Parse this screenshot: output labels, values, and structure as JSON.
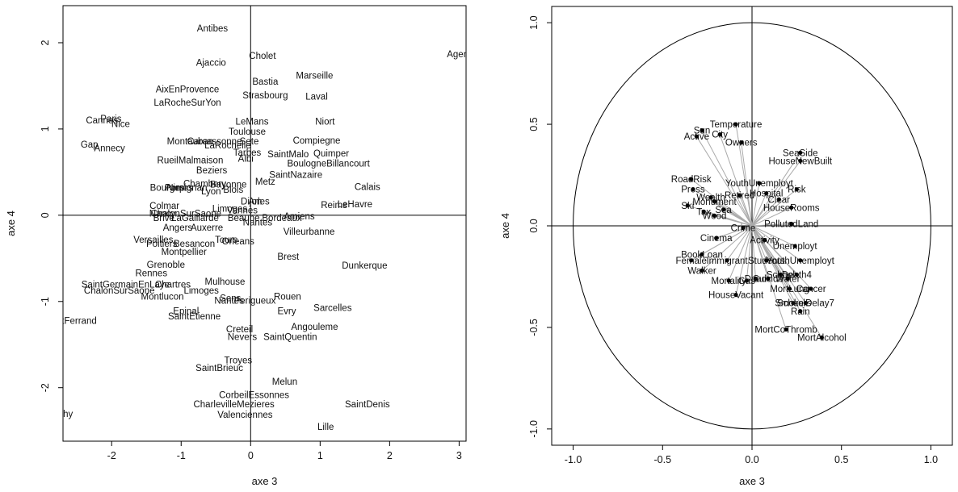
{
  "chart_data": [
    {
      "type": "scatter",
      "xlabel": "axe 3",
      "ylabel": "axe 4",
      "xlim": [
        -2.7,
        3.1
      ],
      "ylim": [
        -2.62,
        2.43
      ],
      "xticks": [
        -2,
        -1,
        0,
        1,
        2,
        3
      ],
      "yticks": [
        -2,
        -1,
        0,
        1,
        2
      ],
      "zero_lines": true,
      "points": [
        {
          "label": "Antibes",
          "x": -0.55,
          "y": 2.17
        },
        {
          "label": "Agen",
          "x": 2.98,
          "y": 1.87
        },
        {
          "label": "Ajaccio",
          "x": -0.57,
          "y": 1.77
        },
        {
          "label": "Cholet",
          "x": 0.17,
          "y": 1.85
        },
        {
          "label": "Marseille",
          "x": 0.92,
          "y": 1.62
        },
        {
          "label": "Bastia",
          "x": 0.21,
          "y": 1.55
        },
        {
          "label": "AixEnProvence",
          "x": -0.91,
          "y": 1.46
        },
        {
          "label": "Strasbourg",
          "x": 0.21,
          "y": 1.39
        },
        {
          "label": "Laval",
          "x": 0.95,
          "y": 1.38
        },
        {
          "label": "LaRocheSurYon",
          "x": -0.91,
          "y": 1.31
        },
        {
          "label": "Paris",
          "x": -2.01,
          "y": 1.12
        },
        {
          "label": "Cannes",
          "x": -2.14,
          "y": 1.1
        },
        {
          "label": "Nice",
          "x": -1.87,
          "y": 1.06
        },
        {
          "label": "LeMans",
          "x": 0.02,
          "y": 1.09
        },
        {
          "label": "Niort",
          "x": 1.07,
          "y": 1.09
        },
        {
          "label": "Toulouse",
          "x": -0.05,
          "y": 0.97
        },
        {
          "label": "Gap",
          "x": -2.32,
          "y": 0.82
        },
        {
          "label": "Annecy",
          "x": -2.03,
          "y": 0.78
        },
        {
          "label": "Montauban",
          "x": -0.87,
          "y": 0.86
        },
        {
          "label": "Carcassonne",
          "x": -0.52,
          "y": 0.86
        },
        {
          "label": "Sete",
          "x": -0.02,
          "y": 0.86
        },
        {
          "label": "LaRochelle",
          "x": -0.33,
          "y": 0.81
        },
        {
          "label": "Compiegne",
          "x": 0.95,
          "y": 0.87
        },
        {
          "label": "Quimper",
          "x": 1.16,
          "y": 0.72
        },
        {
          "label": "Tarbes",
          "x": -0.05,
          "y": 0.73
        },
        {
          "label": "SaintMalo",
          "x": 0.54,
          "y": 0.71
        },
        {
          "label": "RueilMalmaison",
          "x": -0.87,
          "y": 0.64
        },
        {
          "label": "Albi",
          "x": -0.07,
          "y": 0.66
        },
        {
          "label": "BoulogneBillancourt",
          "x": 1.12,
          "y": 0.6
        },
        {
          "label": "Beziers",
          "x": -0.56,
          "y": 0.52
        },
        {
          "label": "SaintNazaire",
          "x": 0.65,
          "y": 0.47
        },
        {
          "label": "Metz",
          "x": 0.21,
          "y": 0.39
        },
        {
          "label": "Calais",
          "x": 1.68,
          "y": 0.33
        },
        {
          "label": "Chambery",
          "x": -0.66,
          "y": 0.37
        },
        {
          "label": "Bayonne",
          "x": -0.32,
          "y": 0.36
        },
        {
          "label": "Perpignan",
          "x": -0.93,
          "y": 0.32
        },
        {
          "label": "Bourges",
          "x": -1.2,
          "y": 0.32
        },
        {
          "label": "Nimes",
          "x": -1.02,
          "y": 0.32
        },
        {
          "label": "Lyon",
          "x": -0.57,
          "y": 0.28
        },
        {
          "label": "Blois",
          "x": -0.25,
          "y": 0.3
        },
        {
          "label": "Dijon",
          "x": 0.01,
          "y": 0.16
        },
        {
          "label": "Arles",
          "x": 0.12,
          "y": 0.16
        },
        {
          "label": "Reims",
          "x": 1.2,
          "y": 0.12
        },
        {
          "label": "LeHavre",
          "x": 1.5,
          "y": 0.13
        },
        {
          "label": "Colmar",
          "x": -1.24,
          "y": 0.11
        },
        {
          "label": "Limoges",
          "x": -0.3,
          "y": 0.08
        },
        {
          "label": "Nancy",
          "x": -1.27,
          "y": 0.02
        },
        {
          "label": "ChalonSurSaone",
          "x": -0.93,
          "y": 0.02
        },
        {
          "label": "Vannes",
          "x": -0.12,
          "y": 0.06
        },
        {
          "label": "Amiens",
          "x": 0.7,
          "y": -0.01
        },
        {
          "label": "Brive",
          "x": -1.25,
          "y": -0.03
        },
        {
          "label": "LaGaillarde",
          "x": -0.8,
          "y": -0.03
        },
        {
          "label": "Beaune",
          "x": -0.1,
          "y": -0.03
        },
        {
          "label": "Bordeaux",
          "x": 0.45,
          "y": -0.03
        },
        {
          "label": "Nantes",
          "x": 0.1,
          "y": -0.08
        },
        {
          "label": "Angers",
          "x": -1.05,
          "y": -0.14
        },
        {
          "label": "Auxerre",
          "x": -0.63,
          "y": -0.14
        },
        {
          "label": "Villeurbanne",
          "x": 0.84,
          "y": -0.19
        },
        {
          "label": "Versailles",
          "x": -1.4,
          "y": -0.28
        },
        {
          "label": "Tours",
          "x": -0.35,
          "y": -0.28
        },
        {
          "label": "Orleans",
          "x": -0.18,
          "y": -0.3
        },
        {
          "label": "Poitiers",
          "x": -1.28,
          "y": -0.33
        },
        {
          "label": "Besancon",
          "x": -0.81,
          "y": -0.33
        },
        {
          "label": "Montpellier",
          "x": -0.96,
          "y": -0.42
        },
        {
          "label": "Brest",
          "x": 0.54,
          "y": -0.48
        },
        {
          "label": "Dunkerque",
          "x": 1.64,
          "y": -0.58
        },
        {
          "label": "Grenoble",
          "x": -1.22,
          "y": -0.57
        },
        {
          "label": "Rennes",
          "x": -1.43,
          "y": -0.67
        },
        {
          "label": "Mulhouse",
          "x": -0.37,
          "y": -0.77
        },
        {
          "label": "SaintGermainEnLaye",
          "x": -1.8,
          "y": -0.8
        },
        {
          "label": "Chartres",
          "x": -1.12,
          "y": -0.8
        },
        {
          "label": "ChalonSurSaone",
          "x": -1.89,
          "y": -0.87
        },
        {
          "label": "Limoges",
          "x": -0.71,
          "y": -0.87
        },
        {
          "label": "Rouen",
          "x": 0.53,
          "y": -0.94
        },
        {
          "label": "Montlucon",
          "x": -1.27,
          "y": -0.94
        },
        {
          "label": "Sens",
          "x": -0.29,
          "y": -0.96
        },
        {
          "label": "Nantes",
          "x": -0.31,
          "y": -0.99
        },
        {
          "label": "Perigueux",
          "x": 0.06,
          "y": -0.99
        },
        {
          "label": "Sarcelles",
          "x": 1.18,
          "y": -1.07
        },
        {
          "label": "Evry",
          "x": 0.52,
          "y": -1.11
        },
        {
          "label": "Epinal",
          "x": -0.93,
          "y": -1.11
        },
        {
          "label": "SaintEtienne",
          "x": -0.81,
          "y": -1.17
        },
        {
          "label": "ClermontFerrand",
          "x": -2.72,
          "y": -1.22
        },
        {
          "label": "Angouleme",
          "x": 0.92,
          "y": -1.29
        },
        {
          "label": "Creteil",
          "x": -0.16,
          "y": -1.32
        },
        {
          "label": "Nevers",
          "x": -0.12,
          "y": -1.41
        },
        {
          "label": "SaintQuentin",
          "x": 0.57,
          "y": -1.41
        },
        {
          "label": "Troyes",
          "x": -0.18,
          "y": -1.68
        },
        {
          "label": "SaintBrieuc",
          "x": -0.45,
          "y": -1.77
        },
        {
          "label": "Melun",
          "x": 0.49,
          "y": -1.93
        },
        {
          "label": "CorbeilEssonnes",
          "x": 0.05,
          "y": -2.08
        },
        {
          "label": "CharlevilleMezieres",
          "x": -0.24,
          "y": -2.19
        },
        {
          "label": "SaintDenis",
          "x": 1.68,
          "y": -2.19
        },
        {
          "label": "Vichy",
          "x": -2.72,
          "y": -2.3
        },
        {
          "label": "Valenciennes",
          "x": -0.08,
          "y": -2.31
        },
        {
          "label": "Lille",
          "x": 1.08,
          "y": -2.45
        }
      ]
    },
    {
      "type": "scatter",
      "xlabel": "axe 3",
      "ylabel": "axe 4",
      "xlim": [
        -1.12,
        1.12
      ],
      "ylim": [
        -1.08,
        1.08
      ],
      "xticks": [
        -1.0,
        -0.5,
        0.0,
        0.5,
        1.0
      ],
      "yticks": [
        -1.0,
        -0.5,
        0.0,
        0.5,
        1.0
      ],
      "tick_labels": [
        "-1.0",
        "-0.5",
        "0.0",
        "0.5",
        "1.0"
      ],
      "zero_lines": true,
      "unit_circle": true,
      "arrows_from_origin": true,
      "points": [
        {
          "label": "Temperature",
          "x": -0.09,
          "y": 0.5
        },
        {
          "label": "Sun",
          "x": -0.28,
          "y": 0.47
        },
        {
          "label": "City",
          "x": -0.18,
          "y": 0.45
        },
        {
          "label": "Active",
          "x": -0.31,
          "y": 0.44
        },
        {
          "label": "Owners",
          "x": -0.06,
          "y": 0.41
        },
        {
          "label": "SeaSide",
          "x": 0.27,
          "y": 0.36
        },
        {
          "label": "HouseNewBuilt",
          "x": 0.27,
          "y": 0.32
        },
        {
          "label": "RoadRisk",
          "x": -0.34,
          "y": 0.23
        },
        {
          "label": "YouthUnemployt",
          "x": 0.04,
          "y": 0.21
        },
        {
          "label": "Press",
          "x": -0.33,
          "y": 0.18
        },
        {
          "label": "Risk",
          "x": 0.25,
          "y": 0.18
        },
        {
          "label": "Retired",
          "x": -0.07,
          "y": 0.15
        },
        {
          "label": "Hospital",
          "x": 0.08,
          "y": 0.16
        },
        {
          "label": "Wealth",
          "x": -0.23,
          "y": 0.14
        },
        {
          "label": "Clear",
          "x": 0.15,
          "y": 0.13
        },
        {
          "label": "Monument",
          "x": -0.21,
          "y": 0.12
        },
        {
          "label": "Ski",
          "x": -0.36,
          "y": 0.1
        },
        {
          "label": "HouseRooms",
          "x": 0.22,
          "y": 0.09
        },
        {
          "label": "Tax",
          "x": -0.27,
          "y": 0.07
        },
        {
          "label": "Sea",
          "x": -0.16,
          "y": 0.08
        },
        {
          "label": "Wood",
          "x": -0.21,
          "y": 0.05
        },
        {
          "label": "PollutedLand",
          "x": 0.22,
          "y": 0.01
        },
        {
          "label": "Crime",
          "x": -0.05,
          "y": -0.01
        },
        {
          "label": "Cinema",
          "x": -0.2,
          "y": -0.06
        },
        {
          "label": "Activity",
          "x": 0.07,
          "y": -0.07
        },
        {
          "label": "Unemployt",
          "x": 0.24,
          "y": -0.1
        },
        {
          "label": "BookLoan",
          "x": -0.28,
          "y": -0.14
        },
        {
          "label": "YouthUnemployt",
          "x": 0.27,
          "y": -0.17
        },
        {
          "label": "Female",
          "x": -0.34,
          "y": -0.17
        },
        {
          "label": "Immigrant",
          "x": -0.14,
          "y": -0.17
        },
        {
          "label": "Students",
          "x": 0.08,
          "y": -0.17
        },
        {
          "label": "Walker",
          "x": -0.28,
          "y": -0.22
        },
        {
          "label": "School",
          "x": 0.16,
          "y": -0.24
        },
        {
          "label": "Death4",
          "x": 0.25,
          "y": -0.24
        },
        {
          "label": "Water",
          "x": 0.2,
          "y": -0.26
        },
        {
          "label": "Mortality",
          "x": -0.13,
          "y": -0.27
        },
        {
          "label": "Gas",
          "x": -0.03,
          "y": -0.27
        },
        {
          "label": "Dead",
          "x": 0.02,
          "y": -0.26
        },
        {
          "label": "Suicide",
          "x": 0.09,
          "y": -0.26
        },
        {
          "label": "Cancer",
          "x": 0.33,
          "y": -0.31
        },
        {
          "label": "MortLung",
          "x": 0.21,
          "y": -0.31
        },
        {
          "label": "HouseVacant",
          "x": -0.09,
          "y": -0.34
        },
        {
          "label": "SchoolDelay7",
          "x": 0.3,
          "y": -0.38
        },
        {
          "label": "Smokers",
          "x": 0.23,
          "y": -0.38
        },
        {
          "label": "Rain",
          "x": 0.27,
          "y": -0.42
        },
        {
          "label": "MortCoThromb",
          "x": 0.19,
          "y": -0.51
        },
        {
          "label": "MortAlcohol",
          "x": 0.39,
          "y": -0.55
        }
      ]
    }
  ]
}
